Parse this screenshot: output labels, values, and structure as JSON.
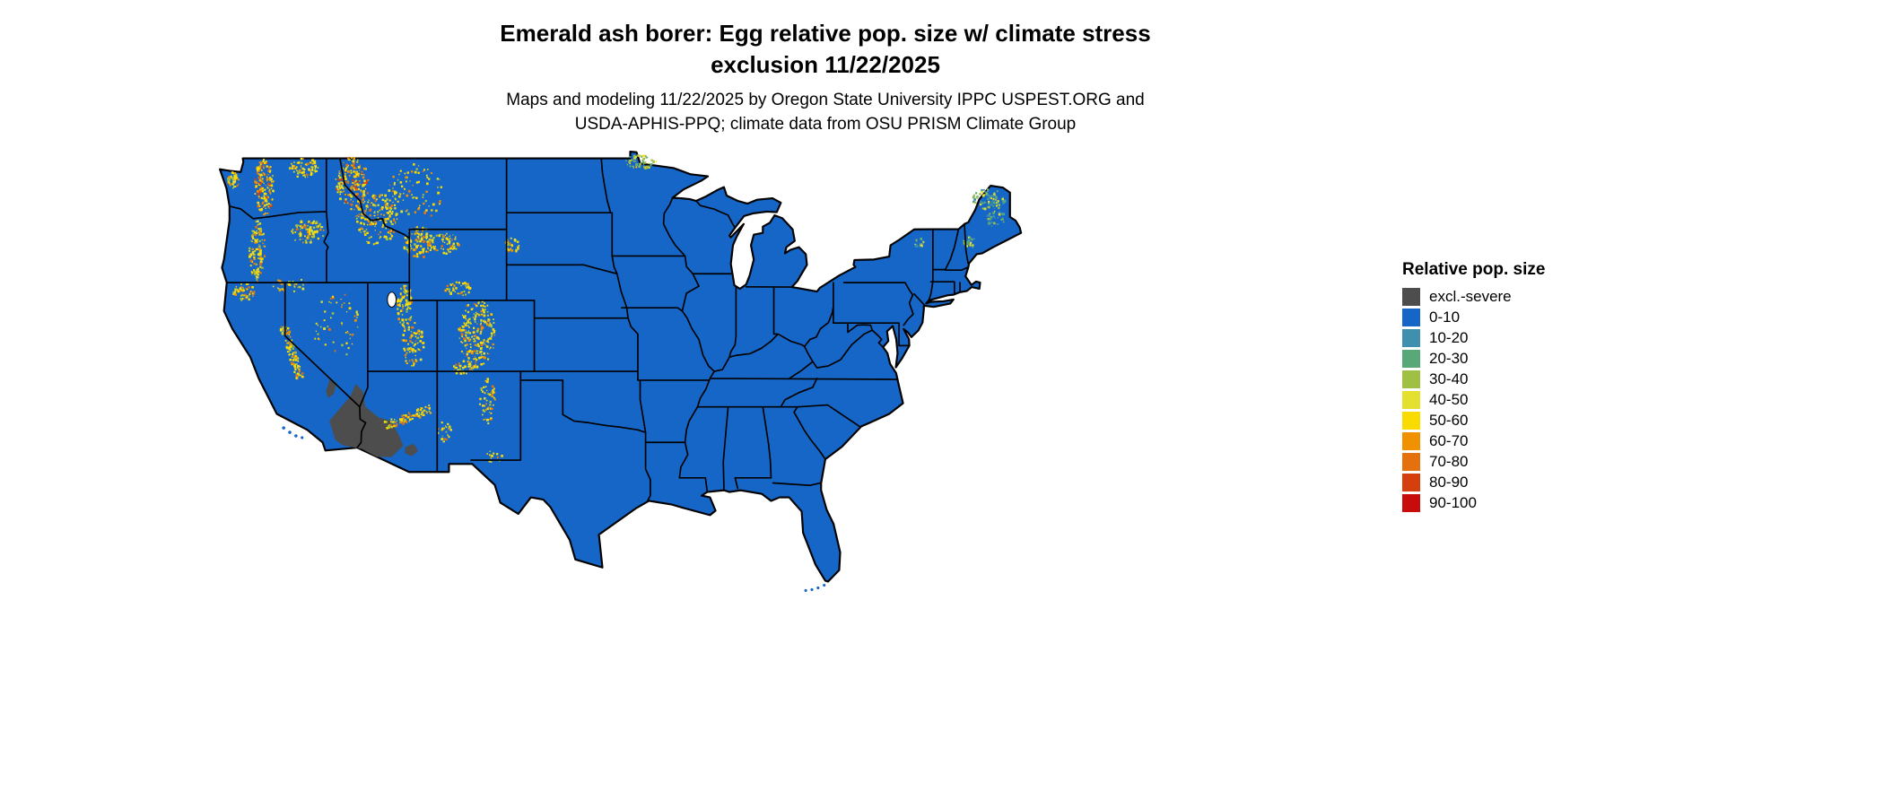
{
  "title": {
    "line1": "Emerald ash borer: Egg relative pop. size w/ climate stress",
    "line2": "exclusion 11/22/2025"
  },
  "subtitle": {
    "line1": "Maps and modeling 11/22/2025 by Oregon State University IPPC USPEST.ORG and",
    "line2": "USDA-APHIS-PPQ; climate data from OSU PRISM Climate Group"
  },
  "legend": {
    "title": "Relative pop. size",
    "entries": [
      {
        "label": "excl.-severe",
        "color": "#4d4d4d"
      },
      {
        "label": "0-10",
        "color": "#1566c6"
      },
      {
        "label": "10-20",
        "color": "#3f8fae"
      },
      {
        "label": "20-30",
        "color": "#58a878"
      },
      {
        "label": "30-40",
        "color": "#9fbf45"
      },
      {
        "label": "40-50",
        "color": "#e3e02f"
      },
      {
        "label": "50-60",
        "color": "#fadb00"
      },
      {
        "label": "60-70",
        "color": "#ef9100"
      },
      {
        "label": "70-80",
        "color": "#e4710e"
      },
      {
        "label": "80-90",
        "color": "#d53e0d"
      },
      {
        "label": "90-100",
        "color": "#c80c0c"
      }
    ]
  },
  "map": {
    "background": "#ffffff",
    "base_color": "#1566c6",
    "exclusion_color": "#4d4d4d",
    "border_color": "#000000",
    "region": "Continental United States with state boundaries",
    "dominant_class": "0-10",
    "exclusion_areas": "Southwestern Arizona desert, southeastern California, southern Nevada",
    "elevated_stress_areas": "Cascades, Sierra Nevada, Northern Rockies, Wasatch, Colorado Rockies, Mogollon Rim, northern Minnesota, northern Maine"
  }
}
